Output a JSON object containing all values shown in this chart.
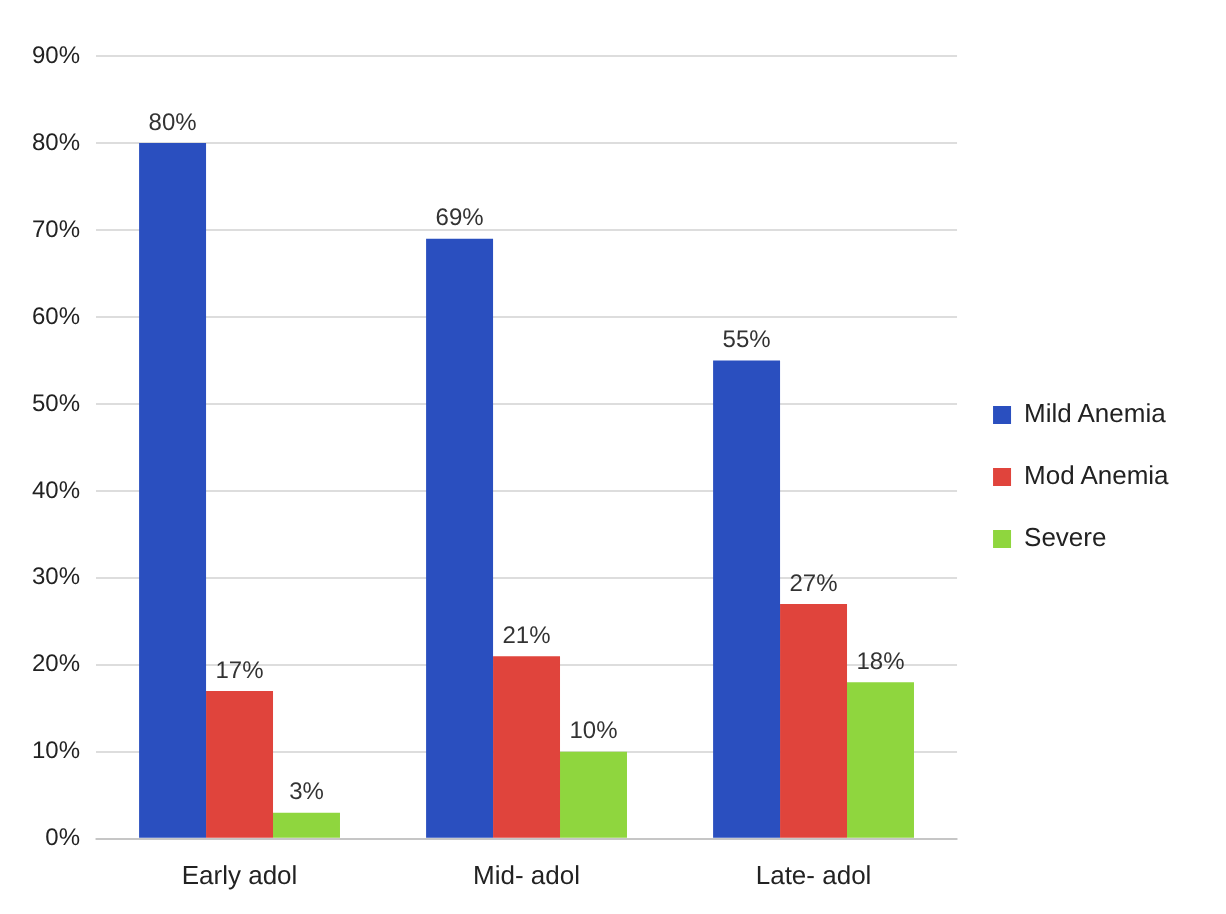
{
  "chart_data": {
    "type": "bar",
    "categories": [
      "Early adol",
      "Mid- adol",
      "Late- adol"
    ],
    "series": [
      {
        "name": "Mild Anemia",
        "color": "#2a4fbf",
        "values": [
          80,
          69,
          55
        ],
        "value_labels": [
          "80%",
          "69%",
          "55%"
        ]
      },
      {
        "name": "Mod Anemia",
        "color": "#e0443c",
        "values": [
          17,
          21,
          27
        ],
        "value_labels": [
          "17%",
          "21%",
          "27%"
        ]
      },
      {
        "name": "Severe",
        "color": "#8fd63e",
        "values": [
          3,
          10,
          18
        ],
        "value_labels": [
          "3%",
          "10%",
          "18%"
        ]
      }
    ],
    "ylim": [
      0,
      90
    ],
    "yticks": [
      {
        "value": 0,
        "label": "0%"
      },
      {
        "value": 10,
        "label": "10%"
      },
      {
        "value": 20,
        "label": "20%"
      },
      {
        "value": 30,
        "label": "30%"
      },
      {
        "value": 40,
        "label": "40%"
      },
      {
        "value": 50,
        "label": "50%"
      },
      {
        "value": 60,
        "label": "60%"
      },
      {
        "value": 70,
        "label": "70%"
      },
      {
        "value": 80,
        "label": "80%"
      },
      {
        "value": 90,
        "label": "90%"
      }
    ],
    "grid": "y",
    "legend": "right"
  }
}
